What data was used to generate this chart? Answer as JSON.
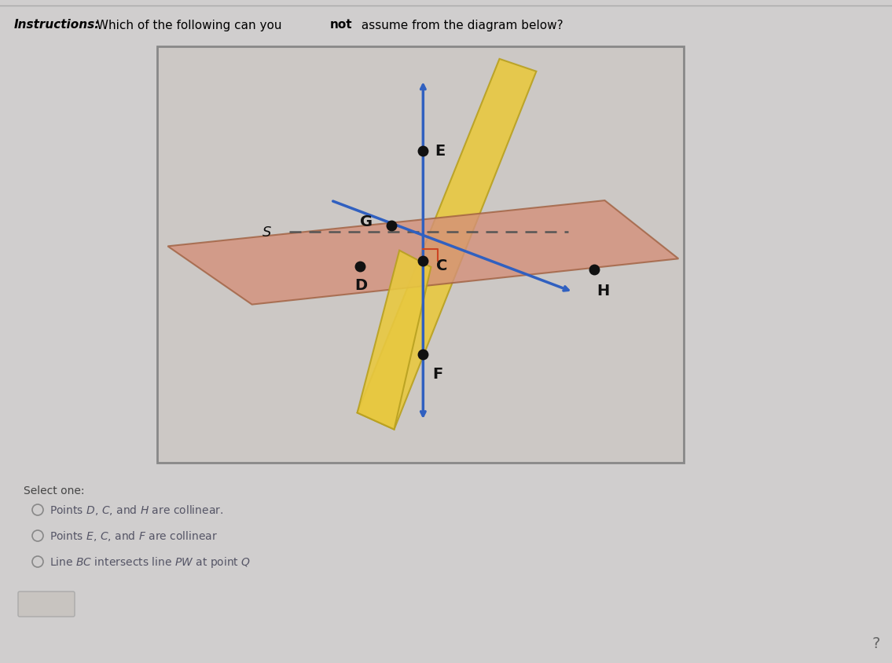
{
  "bg_color": "#d0cece",
  "box_bg": "#ccc8c5",
  "yellow_plane_color": "#e8c840",
  "yellow_plane_alpha": 0.9,
  "orange_plane_color": "#d4907a",
  "orange_plane_alpha": 0.8,
  "arrow_color": "#3060c0",
  "point_color": "#111111",
  "label_color": "#111111",
  "dashed_color": "#555555",
  "right_angle_color": "#cc4422",
  "options": [
    "Points $D$, $C$, and $H$ are collinear.",
    "Points $E$, $C$, and $F$ are collinear",
    "Line $BC$ intersects line $PW$ at point $Q$"
  ]
}
